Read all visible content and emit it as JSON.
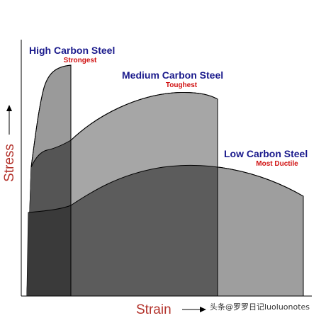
{
  "axes": {
    "x_label": "Strain",
    "y_label": "Stress"
  },
  "curves": {
    "high": {
      "title": "High Carbon Steel",
      "subtitle": "Strongest",
      "fill": "#9a9a9a"
    },
    "medium": {
      "title": "Medium Carbon Steel",
      "subtitle": "Toughest",
      "fill": "#a6a6a6"
    },
    "low": {
      "title": "Low Carbon Steel",
      "subtitle": "Most Ductile",
      "fill": "#9e9e9e"
    }
  },
  "colors": {
    "title_text": "#1a1a8c",
    "subtitle_text": "#d01010",
    "axis_label_text": "#b3322b",
    "region_dark": "#3a3a3a",
    "region_mid": "#555555",
    "region_midlight": "#5c5c5c"
  },
  "watermark": "头条@罗罗日记luoluonotes"
}
